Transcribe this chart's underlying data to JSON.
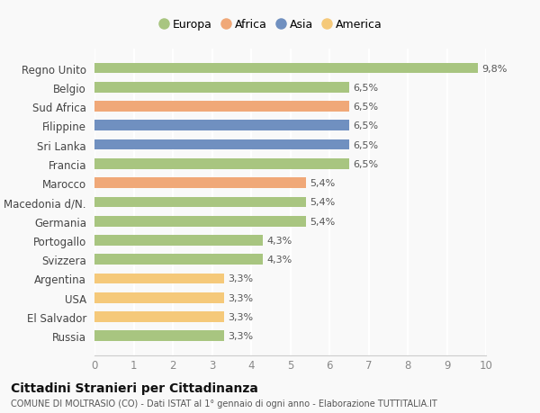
{
  "categories": [
    "Russia",
    "El Salvador",
    "USA",
    "Argentina",
    "Svizzera",
    "Portogallo",
    "Germania",
    "Macedonia d/N.",
    "Marocco",
    "Francia",
    "Sri Lanka",
    "Filippine",
    "Sud Africa",
    "Belgio",
    "Regno Unito"
  ],
  "values": [
    3.3,
    3.3,
    3.3,
    3.3,
    4.3,
    4.3,
    5.4,
    5.4,
    5.4,
    6.5,
    6.5,
    6.5,
    6.5,
    6.5,
    9.8
  ],
  "labels": [
    "3,3%",
    "3,3%",
    "3,3%",
    "3,3%",
    "4,3%",
    "4,3%",
    "5,4%",
    "5,4%",
    "5,4%",
    "6,5%",
    "6,5%",
    "6,5%",
    "6,5%",
    "6,5%",
    "9,8%"
  ],
  "colors": [
    "#a8c580",
    "#f5c97a",
    "#f5c97a",
    "#f5c97a",
    "#a8c580",
    "#a8c580",
    "#a8c580",
    "#a8c580",
    "#f0a878",
    "#a8c580",
    "#7090c0",
    "#7090c0",
    "#f0a878",
    "#a8c580",
    "#a8c580"
  ],
  "legend_labels": [
    "Europa",
    "Africa",
    "Asia",
    "America"
  ],
  "legend_colors": [
    "#a8c580",
    "#f0a878",
    "#7090c0",
    "#f5c97a"
  ],
  "xlim": [
    0,
    10
  ],
  "xticks": [
    0,
    1,
    2,
    3,
    4,
    5,
    6,
    7,
    8,
    9,
    10
  ],
  "title1": "Cittadini Stranieri per Cittadinanza",
  "title2": "COMUNE DI MOLTRASIO (CO) - Dati ISTAT al 1° gennaio di ogni anno - Elaborazione TUTTITALIA.IT",
  "bg_color": "#f9f9f9",
  "bar_height": 0.55
}
